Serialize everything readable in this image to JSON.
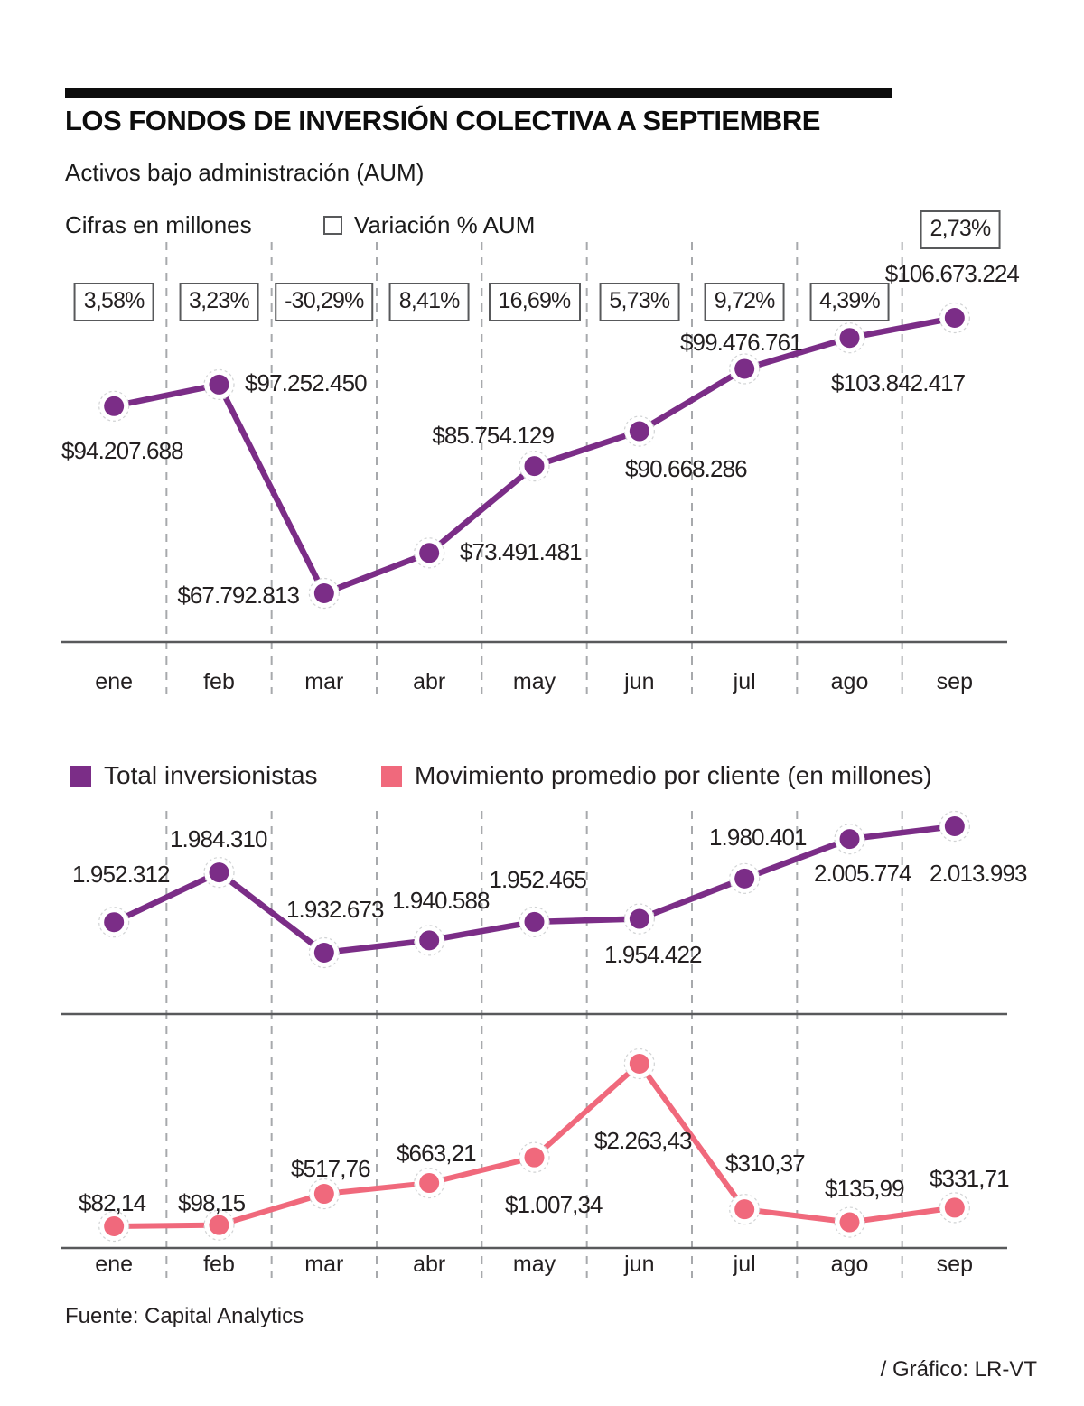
{
  "header": {
    "title": "LOS FONDOS DE INVERSIÓN COLECTIVA A SEPTIEMBRE",
    "subtitle": "Activos bajo administración (AUM)",
    "units_note": "Cifras en millones",
    "variation_legend": "Variación % AUM"
  },
  "months": [
    "ene",
    "feb",
    "mar",
    "abr",
    "may",
    "jun",
    "jul",
    "ago",
    "sep"
  ],
  "legend2": {
    "investors": "Total inversionistas",
    "movement": "Movimiento promedio por cliente (en millones)"
  },
  "footer": {
    "source": "Fuente: Capital Analytics",
    "credit": "/ Gráfico: LR-VT"
  },
  "colors": {
    "purple": "#7b2d87",
    "pink": "#f0697c",
    "axis": "#58595b",
    "gridline": "#a7a9ac",
    "halo_ring": "#d1d3d4",
    "text": "#231f20"
  },
  "chart_data": [
    {
      "type": "line",
      "name": "aum",
      "title": "Activos bajo administración (AUM)",
      "units": "Cifras en millones",
      "categories": [
        "ene",
        "feb",
        "mar",
        "abr",
        "may",
        "jun",
        "jul",
        "ago",
        "sep"
      ],
      "values": [
        94207688,
        97252450,
        67792813,
        73491481,
        85754129,
        90668286,
        99476761,
        103842417,
        106673224
      ],
      "labels": [
        "$94.207.688",
        "$97.252.450",
        "$67.792.813",
        "$73.491.481",
        "$85.754.129",
        "$90.668.286",
        "$99.476.761",
        "$103.842.417",
        "$106.673.224"
      ],
      "variation_pct": [
        3.58,
        3.23,
        -30.29,
        8.41,
        16.69,
        5.73,
        9.72,
        4.39,
        2.73
      ],
      "variation_labels": [
        "3,58%",
        "3,23%",
        "-30,29%",
        "8,41%",
        "16,69%",
        "5,73%",
        "9,72%",
        "4,39%",
        "2,73%"
      ],
      "ylim": [
        67792813,
        106673224
      ],
      "grid": "vertical-dashed",
      "legend_position": "top"
    },
    {
      "type": "line",
      "name": "total_inversionistas",
      "title": "Total inversionistas",
      "categories": [
        "ene",
        "feb",
        "mar",
        "abr",
        "may",
        "jun",
        "jul",
        "ago",
        "sep"
      ],
      "values": [
        1952312,
        1984310,
        1932673,
        1940588,
        1952465,
        1954422,
        1980401,
        2005774,
        2013993
      ],
      "labels": [
        "1.952.312",
        "1.984.310",
        "1.932.673",
        "1.940.588",
        "1.952.465",
        "1.954.422",
        "1.980.401",
        "2.005.774",
        "2.013.993"
      ],
      "ylim": [
        1932673,
        2013993
      ],
      "grid": "vertical-dashed",
      "legend_position": "top"
    },
    {
      "type": "line",
      "name": "movimiento_promedio_por_cliente",
      "title": "Movimiento promedio por cliente (en millones)",
      "categories": [
        "ene",
        "feb",
        "mar",
        "abr",
        "may",
        "jun",
        "jul",
        "ago",
        "sep"
      ],
      "values": [
        82.14,
        98.15,
        517.76,
        663.21,
        1007.34,
        2263.43,
        310.37,
        135.99,
        331.71
      ],
      "labels": [
        "$82,14",
        "$98,15",
        "$517,76",
        "$663,21",
        "$1.007,34",
        "$2.263,43",
        "$310,37",
        "$135,99",
        "$331,71"
      ],
      "ylim": [
        82.14,
        2263.43
      ],
      "grid": "vertical-dashed",
      "legend_position": "top"
    }
  ]
}
